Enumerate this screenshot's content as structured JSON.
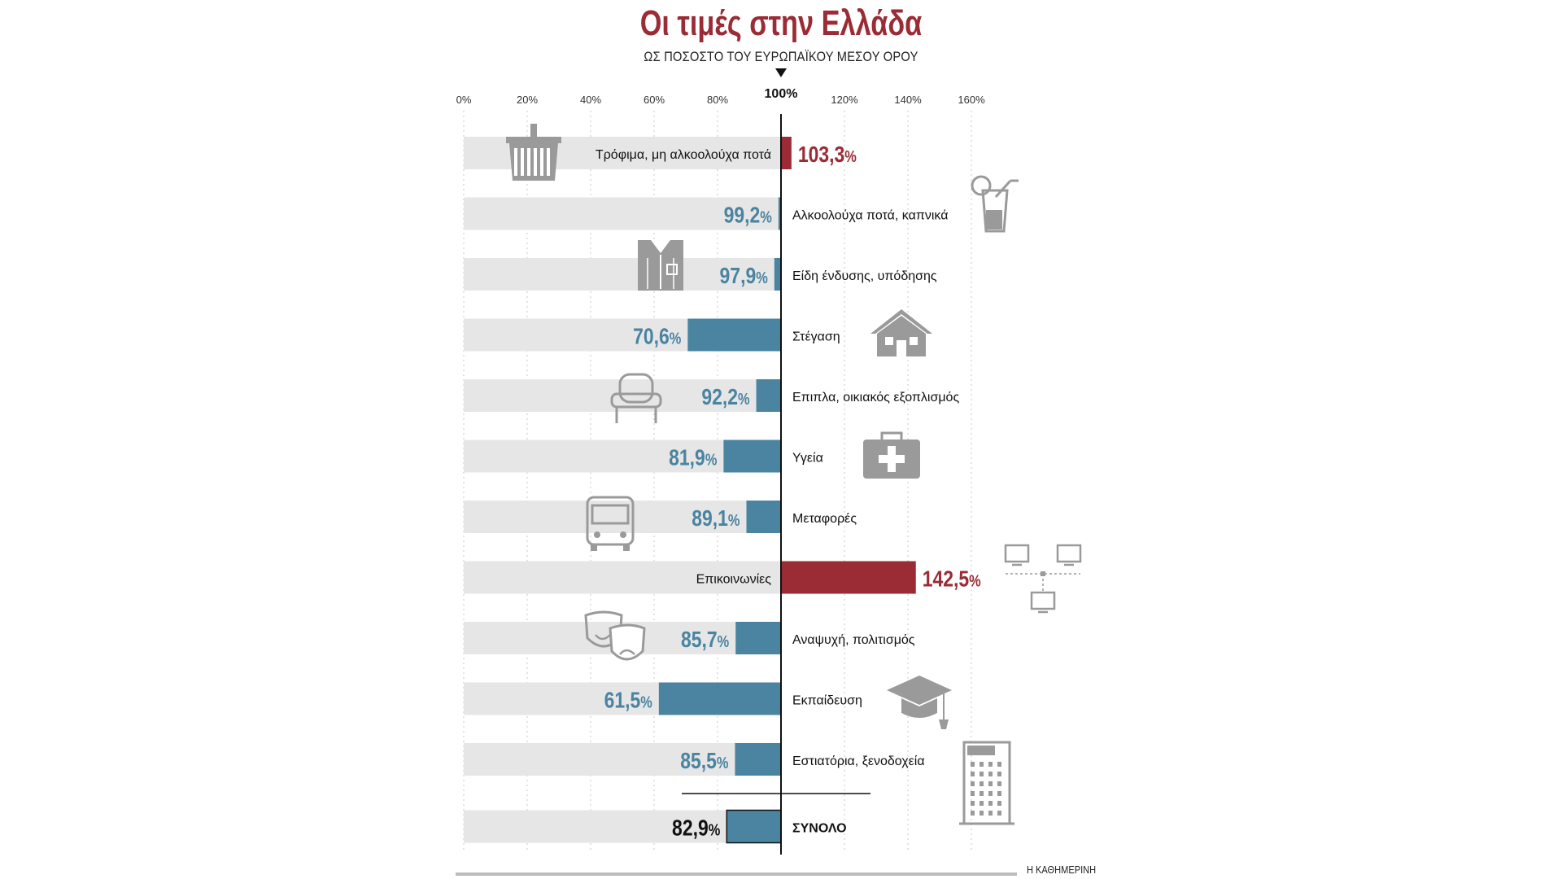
{
  "header": {
    "title": "Οι τιμές στην Ελλάδα",
    "subtitle": "ΩΣ ΠΟΣΟΣΤΟ ΤΟΥ ΕΥΡΩΠΑΪΚΟΥ ΜΕΣΟΥ ΟΡΟΥ"
  },
  "credit": "Η ΚΑΘΗΜΕΡΙΝΗ",
  "colors": {
    "above": "#9b2b35",
    "below": "#4a84a0",
    "total_label": "#111111",
    "track": "#e6e6e6",
    "icon": "#9a9a9a"
  },
  "chart_data": {
    "type": "bar",
    "orientation": "horizontal",
    "title": "Οι τιμές στην Ελλάδα",
    "subtitle": "ΩΣ ΠΟΣΟΣΤΟ ΤΟΥ ΕΥΡΩΠΑΪΚΟΥ ΜΕΣΟΥ ΟΡΟΥ",
    "xlim": [
      0,
      160
    ],
    "baseline": 100,
    "baseline_label": "100%",
    "ticks": [
      "0%",
      "20%",
      "40%",
      "60%",
      "80%",
      "120%",
      "140%",
      "160%"
    ],
    "tick_values": [
      0,
      20,
      40,
      60,
      80,
      120,
      140,
      160
    ],
    "grid": true,
    "categories": [
      "Τρόφιμα, μη αλκοολούχα ποτά",
      "Αλκοολούχα ποτά, καπνικά",
      "Είδη ένδυσης, υπόδησης",
      "Στέγαση",
      "Επιπλα, οικιακός εξοπλισμός",
      "Υγεία",
      "Μεταφορές",
      "Επικοινωνίες",
      "Αναψυχή, πολιτισμός",
      "Εκπαίδευση",
      "Εστιατόρια, ξενοδοχεία",
      "ΣΥΝΟΛΟ"
    ],
    "values": [
      103.3,
      99.2,
      97.9,
      70.6,
      92.2,
      81.9,
      89.1,
      142.5,
      85.7,
      61.5,
      85.5,
      82.9
    ],
    "value_labels": [
      "103,3",
      "99,2",
      "97,9",
      "70,6",
      "92,2",
      "81,9",
      "89,1",
      "142,5",
      "85,7",
      "61,5",
      "85,5",
      "82,9"
    ],
    "percent_sign": "%",
    "icons": [
      "basket-icon",
      "cocktail-glass-icon",
      "shirt-icon",
      "house-icon",
      "armchair-icon",
      "first-aid-kit-icon",
      "bus-icon",
      "computer-network-icon",
      "theater-masks-icon",
      "graduation-cap-icon",
      "hotel-icon",
      ""
    ]
  }
}
